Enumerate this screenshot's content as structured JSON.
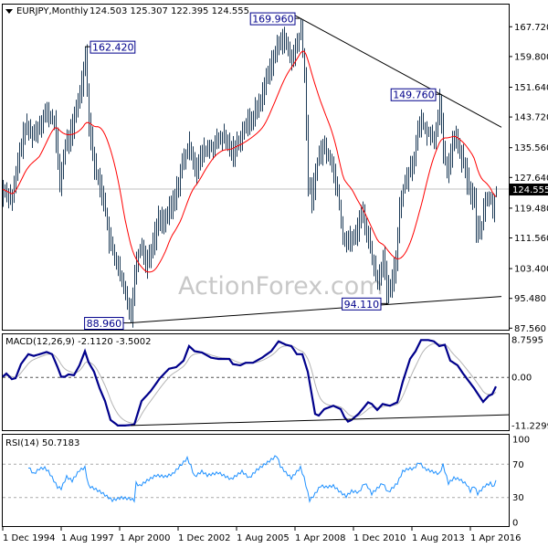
{
  "header": {
    "symbol": "EURJPY,Monthly",
    "ohlc": "124.503 125.307 122.395 124.555"
  },
  "watermark": "ActionForex.com",
  "colors": {
    "bars": "#1e3c58",
    "sma": "#ff0000",
    "macd": "#00008b",
    "signal": "#b4b4b4",
    "rsi": "#1e90ff",
    "current_price_bg": "#000000"
  },
  "chart_data": [
    {
      "type": "ohlc",
      "title": "EURJPY,Monthly",
      "last_bar": {
        "open": 124.503,
        "high": 125.307,
        "low": 122.395,
        "close": 124.555
      },
      "current_price": "124.555",
      "y_ticks": [
        "167.720",
        "159.800",
        "151.640",
        "143.720",
        "135.560",
        "127.640",
        "119.480",
        "111.560",
        "103.400",
        "95.480",
        "87.560"
      ],
      "ylim": [
        87.56,
        167.72
      ],
      "annotations": [
        {
          "label": "162.420",
          "date": "1998-09",
          "value": 162.42,
          "kind": "high"
        },
        {
          "label": "88.960",
          "date": "2000-10",
          "value": 88.96,
          "kind": "low"
        },
        {
          "label": "169.960",
          "date": "2008-07",
          "value": 169.96,
          "kind": "high"
        },
        {
          "label": "94.110",
          "date": "2012-07",
          "value": 94.11,
          "kind": "low"
        },
        {
          "label": "149.760",
          "date": "2014-12",
          "value": 149.76,
          "kind": "high"
        }
      ],
      "trendlines": [
        {
          "from": [
            "2008-03",
            171.0
          ],
          "to": [
            "2017-09",
            141.0
          ]
        },
        {
          "from": [
            "2000-10",
            88.96
          ],
          "to": [
            "2017-09",
            96.0
          ]
        }
      ],
      "close_series": [
        [
          "1994-12",
          124.5
        ],
        [
          "1995-05",
          122.1
        ],
        [
          "1995-09",
          134.3
        ],
        [
          "1995-12",
          140.8
        ],
        [
          "1996-05",
          139.1
        ],
        [
          "1996-11",
          144.9
        ],
        [
          "1997-04",
          142.5
        ],
        [
          "1997-07",
          126.2
        ],
        [
          "1997-10",
          136
        ],
        [
          "1998-02",
          140.8
        ],
        [
          "1998-07",
          153
        ],
        [
          "1998-09",
          160.3
        ],
        [
          "1998-11",
          142.5
        ],
        [
          "1999-02",
          130.4
        ],
        [
          "1999-07",
          122.1
        ],
        [
          "1999-10",
          110.9
        ],
        [
          "2000-02",
          105.2
        ],
        [
          "2000-05",
          99.5
        ],
        [
          "2000-10",
          91.5
        ],
        [
          "2001-01",
          106.1
        ],
        [
          "2001-04",
          110
        ],
        [
          "2001-06",
          104.4
        ],
        [
          "2001-10",
          110
        ],
        [
          "2002-01",
          116.5
        ],
        [
          "2002-05",
          116.5
        ],
        [
          "2002-10",
          122.1
        ],
        [
          "2003-02",
          131.1
        ],
        [
          "2003-06",
          136
        ],
        [
          "2003-10",
          129.4
        ],
        [
          "2004-01",
          134.3
        ],
        [
          "2004-07",
          136
        ],
        [
          "2004-12",
          138.4
        ],
        [
          "2005-06",
          134.3
        ],
        [
          "2005-12",
          140.8
        ],
        [
          "2006-05",
          144
        ],
        [
          "2006-10",
          149.5
        ],
        [
          "2007-01",
          156.1
        ],
        [
          "2007-05",
          160.3
        ],
        [
          "2007-08",
          165.1
        ],
        [
          "2007-11",
          162.7
        ],
        [
          "2008-02",
          158.6
        ],
        [
          "2008-07",
          166.8
        ],
        [
          "2008-09",
          154.7
        ],
        [
          "2008-11",
          126.2
        ],
        [
          "2009-01",
          122.1
        ],
        [
          "2009-04",
          131.9
        ],
        [
          "2009-07",
          136
        ],
        [
          "2009-11",
          132.8
        ],
        [
          "2010-03",
          124.6
        ],
        [
          "2010-06",
          111.7
        ],
        [
          "2010-09",
          110.9
        ],
        [
          "2011-01",
          111.7
        ],
        [
          "2011-04",
          119
        ],
        [
          "2011-07",
          113.5
        ],
        [
          "2011-11",
          103.7
        ],
        [
          "2012-01",
          100.3
        ],
        [
          "2012-04",
          106.1
        ],
        [
          "2012-06",
          97.1
        ],
        [
          "2012-09",
          99.5
        ],
        [
          "2012-11",
          106.1
        ],
        [
          "2013-01",
          119.7
        ],
        [
          "2013-03",
          124.6
        ],
        [
          "2013-06",
          129.4
        ],
        [
          "2013-09",
          132.8
        ],
        [
          "2013-12",
          142.5
        ],
        [
          "2014-04",
          140.1
        ],
        [
          "2014-08",
          137.6
        ],
        [
          "2014-11",
          148.1
        ],
        [
          "2015-01",
          134.3
        ],
        [
          "2015-03",
          129.4
        ],
        [
          "2015-07",
          138.4
        ],
        [
          "2015-09",
          136
        ],
        [
          "2016-01",
          129.4
        ],
        [
          "2016-03",
          124.6
        ],
        [
          "2016-06",
          121.4
        ],
        [
          "2016-07",
          113.5
        ],
        [
          "2016-10",
          114.9
        ],
        [
          "2016-12",
          121.4
        ],
        [
          "2017-03",
          122.1
        ],
        [
          "2017-04",
          118.2
        ],
        [
          "2017-06",
          124.555
        ]
      ]
    },
    {
      "type": "line",
      "title": "MACD(12,26,9) -2.1120 -3.5002",
      "y_ticks": [
        "8.7595",
        "0.00",
        "-11.2299"
      ],
      "ylim": [
        -11.2299,
        8.7595
      ],
      "zero_line": true,
      "trendline": {
        "from": [
          "2000-10",
          -11.2
        ],
        "to": [
          "2017-09",
          -8.7
        ]
      },
      "macd_series": [
        [
          "1994-12",
          0.15
        ],
        [
          "1995-02",
          0.9
        ],
        [
          "1995-05",
          -0.4
        ],
        [
          "1995-07",
          -0.2
        ],
        [
          "1995-10",
          3.1
        ],
        [
          "1996-02",
          5.4
        ],
        [
          "1996-05",
          5.0
        ],
        [
          "1996-12",
          5.9
        ],
        [
          "1997-03",
          5.4
        ],
        [
          "1997-06",
          2.4
        ],
        [
          "1997-08",
          0.15
        ],
        [
          "1997-10",
          0.15
        ],
        [
          "1997-12",
          0.7
        ],
        [
          "1998-03",
          0.5
        ],
        [
          "1998-06",
          2.8
        ],
        [
          "1998-09",
          6.1
        ],
        [
          "1998-11",
          3.5
        ],
        [
          "1999-02",
          1.3
        ],
        [
          "1999-05",
          -2.5
        ],
        [
          "1999-08",
          -5.5
        ],
        [
          "1999-11",
          -9.9
        ],
        [
          "2000-03",
          -11.2
        ],
        [
          "2000-07",
          -11.2
        ],
        [
          "2000-12",
          -11.0
        ],
        [
          "2001-04",
          -5.5
        ],
        [
          "2001-09",
          -3.2
        ],
        [
          "2002-02",
          -0.2
        ],
        [
          "2002-07",
          2.0
        ],
        [
          "2002-11",
          2.4
        ],
        [
          "2003-03",
          3.9
        ],
        [
          "2003-06",
          7.3
        ],
        [
          "2003-09",
          6.1
        ],
        [
          "2004-01",
          5.8
        ],
        [
          "2004-06",
          4.6
        ],
        [
          "2004-10",
          4.3
        ],
        [
          "2005-04",
          4.3
        ],
        [
          "2005-06",
          3.1
        ],
        [
          "2005-10",
          2.8
        ],
        [
          "2006-01",
          3.4
        ],
        [
          "2006-05",
          3.4
        ],
        [
          "2006-10",
          4.6
        ],
        [
          "2007-03",
          6.1
        ],
        [
          "2007-07",
          8.4
        ],
        [
          "2007-11",
          7.6
        ],
        [
          "2008-02",
          7.3
        ],
        [
          "2008-05",
          5.4
        ],
        [
          "2008-08",
          5.4
        ],
        [
          "2008-11",
          1.3
        ],
        [
          "2009-03",
          -8.5
        ],
        [
          "2009-05",
          -8.9
        ],
        [
          "2009-08",
          -7.4
        ],
        [
          "2010-01",
          -6.6
        ],
        [
          "2010-05",
          -7.4
        ],
        [
          "2010-07",
          -9.2
        ],
        [
          "2010-09",
          -10.3
        ],
        [
          "2010-11",
          -9.9
        ],
        [
          "2011-03",
          -8.4
        ],
        [
          "2011-08",
          -5.8
        ],
        [
          "2011-10",
          -6.2
        ],
        [
          "2012-01",
          -7.6
        ],
        [
          "2012-04",
          -6.2
        ],
        [
          "2012-08",
          -6.6
        ],
        [
          "2012-12",
          -5.8
        ],
        [
          "2013-03",
          -1.0
        ],
        [
          "2013-07",
          4.3
        ],
        [
          "2013-10",
          6.1
        ],
        [
          "2014-01",
          8.7
        ],
        [
          "2014-05",
          8.7
        ],
        [
          "2014-08",
          8.4
        ],
        [
          "2014-11",
          7.3
        ],
        [
          "2015-02",
          7.6
        ],
        [
          "2015-05",
          3.9
        ],
        [
          "2015-09",
          2.8
        ],
        [
          "2015-12",
          0.9
        ],
        [
          "2016-06",
          -2.5
        ],
        [
          "2016-11",
          -5.7
        ],
        [
          "2017-02",
          -4.3
        ],
        [
          "2017-04",
          -3.9
        ],
        [
          "2017-06",
          -2.112
        ]
      ]
    },
    {
      "type": "line",
      "title": "RSI(14) 50.7183",
      "y_ticks": [
        "100",
        "70",
        "30",
        "0"
      ],
      "ylim": [
        0,
        100
      ],
      "levels": [
        70,
        30
      ],
      "rsi_series": [
        [
          "1996-02",
          66.9
        ],
        [
          "1996-05",
          58.3
        ],
        [
          "1996-08",
          64.6
        ],
        [
          "1996-11",
          65.5
        ],
        [
          "1997-01",
          61.4
        ],
        [
          "1997-03",
          54.2
        ],
        [
          "1997-06",
          42.5
        ],
        [
          "1997-08",
          40.9
        ],
        [
          "1997-11",
          55.0
        ],
        [
          "1998-02",
          50.2
        ],
        [
          "1998-06",
          62.8
        ],
        [
          "1998-09",
          66
        ],
        [
          "1998-11",
          44
        ],
        [
          "1999-02",
          40.9
        ],
        [
          "1999-06",
          36.1
        ],
        [
          "1999-12",
          26.7
        ],
        [
          "2000-05",
          29.8
        ],
        [
          "2000-10",
          28.3
        ],
        [
          "2000-12",
          26.7
        ],
        [
          "2001-01",
          47.2
        ],
        [
          "2001-03",
          44
        ],
        [
          "2001-07",
          50.4
        ],
        [
          "2001-12",
          56.7
        ],
        [
          "2002-05",
          55.1
        ],
        [
          "2002-09",
          58.3
        ],
        [
          "2003-01",
          67.8
        ],
        [
          "2003-05",
          77.2
        ],
        [
          "2003-07",
          67.8
        ],
        [
          "2003-09",
          55.1
        ],
        [
          "2004-01",
          61.4
        ],
        [
          "2004-04",
          56.7
        ],
        [
          "2004-10",
          59.8
        ],
        [
          "2005-05",
          52
        ],
        [
          "2005-11",
          61.4
        ],
        [
          "2006-03",
          53.5
        ],
        [
          "2006-07",
          63
        ],
        [
          "2007-01",
          72.4
        ],
        [
          "2007-06",
          80.3
        ],
        [
          "2007-08",
          67.8
        ],
        [
          "2007-11",
          59.8
        ],
        [
          "2008-02",
          53.5
        ],
        [
          "2008-07",
          66.1
        ],
        [
          "2008-09",
          53.5
        ],
        [
          "2008-12",
          26.7
        ],
        [
          "2009-02",
          31.4
        ],
        [
          "2009-06",
          44
        ],
        [
          "2009-09",
          42.5
        ],
        [
          "2010-01",
          44
        ],
        [
          "2010-05",
          36.1
        ],
        [
          "2010-08",
          31.4
        ],
        [
          "2010-11",
          37.7
        ],
        [
          "2011-03",
          36.1
        ],
        [
          "2011-06",
          47.2
        ],
        [
          "2011-08",
          42.5
        ],
        [
          "2011-10",
          34.6
        ],
        [
          "2012-04",
          47.2
        ],
        [
          "2012-07",
          36.1
        ],
        [
          "2012-12",
          47.2
        ],
        [
          "2013-03",
          61.4
        ],
        [
          "2013-06",
          64.6
        ],
        [
          "2013-09",
          64.6
        ],
        [
          "2013-12",
          72.4
        ],
        [
          "2014-03",
          64.6
        ],
        [
          "2014-07",
          61.4
        ],
        [
          "2014-11",
          58.3
        ],
        [
          "2015-01",
          69.4
        ],
        [
          "2015-04",
          47.2
        ],
        [
          "2015-07",
          53.5
        ],
        [
          "2015-10",
          52
        ],
        [
          "2016-02",
          45.7
        ],
        [
          "2016-04",
          37.7
        ],
        [
          "2016-06",
          44
        ],
        [
          "2016-08",
          34.6
        ],
        [
          "2016-12",
          44
        ],
        [
          "2017-03",
          47.2
        ],
        [
          "2017-05",
          42.5
        ],
        [
          "2017-06",
          50.7183
        ]
      ]
    }
  ],
  "x_axis": {
    "ticks": [
      "1 Dec 1994",
      "1 Aug 1997",
      "1 Apr 2000",
      "1 Dec 2002",
      "1 Aug 2005",
      "1 Apr 2008",
      "1 Dec 2010",
      "1 Aug 2013",
      "1 Apr 2016"
    ]
  }
}
